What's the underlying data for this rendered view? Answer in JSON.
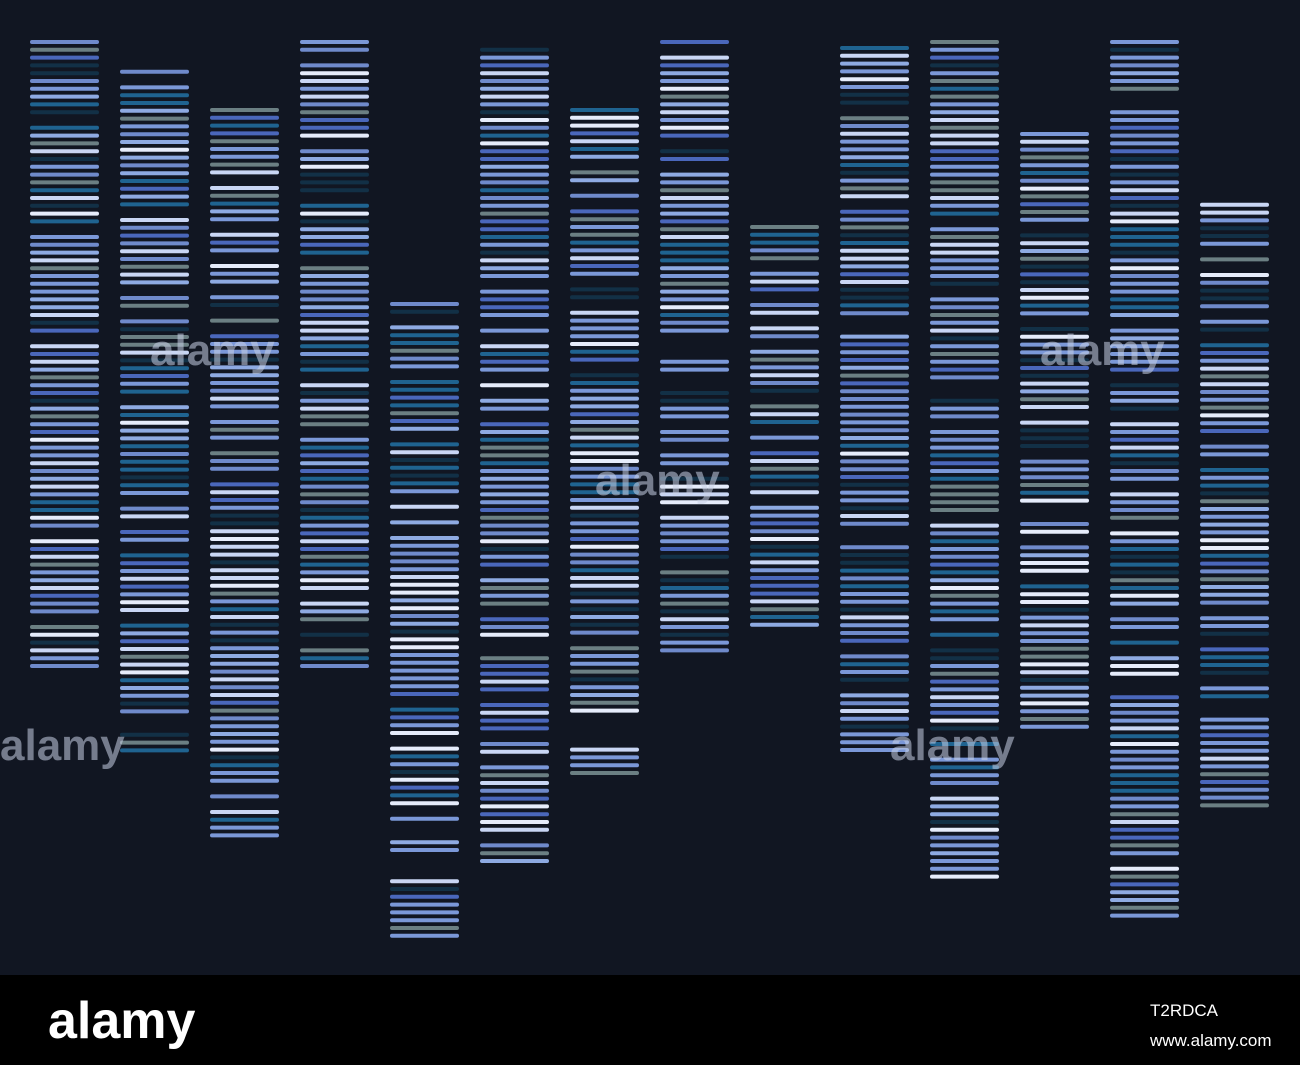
{
  "watermark": "alamy",
  "footer": {
    "logo": "alamy",
    "image_id": "T2RDCA",
    "url": "www.alamy.com"
  }
}
